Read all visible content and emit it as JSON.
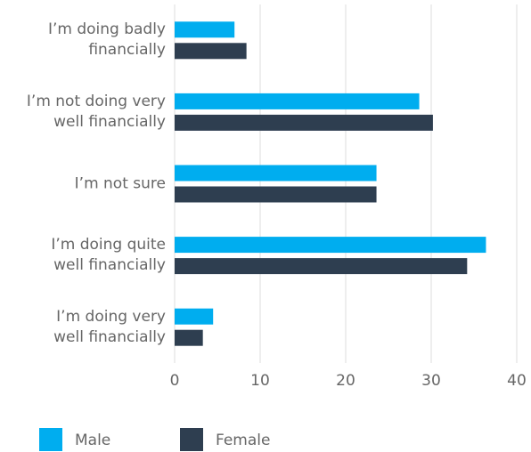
{
  "chart_data": {
    "type": "bar",
    "orientation": "horizontal",
    "categories": [
      "I’m doing badly\nfinancially",
      "I’m not doing very\nwell financially",
      "I’m not sure",
      "I’m doing quite\nwell financially",
      "I’m doing very\nwell financially"
    ],
    "series": [
      {
        "name": "Male",
        "color": "#00adef",
        "values": [
          7.0,
          28.6,
          23.6,
          36.4,
          4.5
        ]
      },
      {
        "name": "Female",
        "color": "#2e3e50",
        "values": [
          8.4,
          30.2,
          23.6,
          34.2,
          3.3
        ]
      }
    ],
    "xlim": [
      0,
      40
    ],
    "xticks": [
      0,
      10,
      20,
      30,
      40
    ],
    "grid": true
  }
}
